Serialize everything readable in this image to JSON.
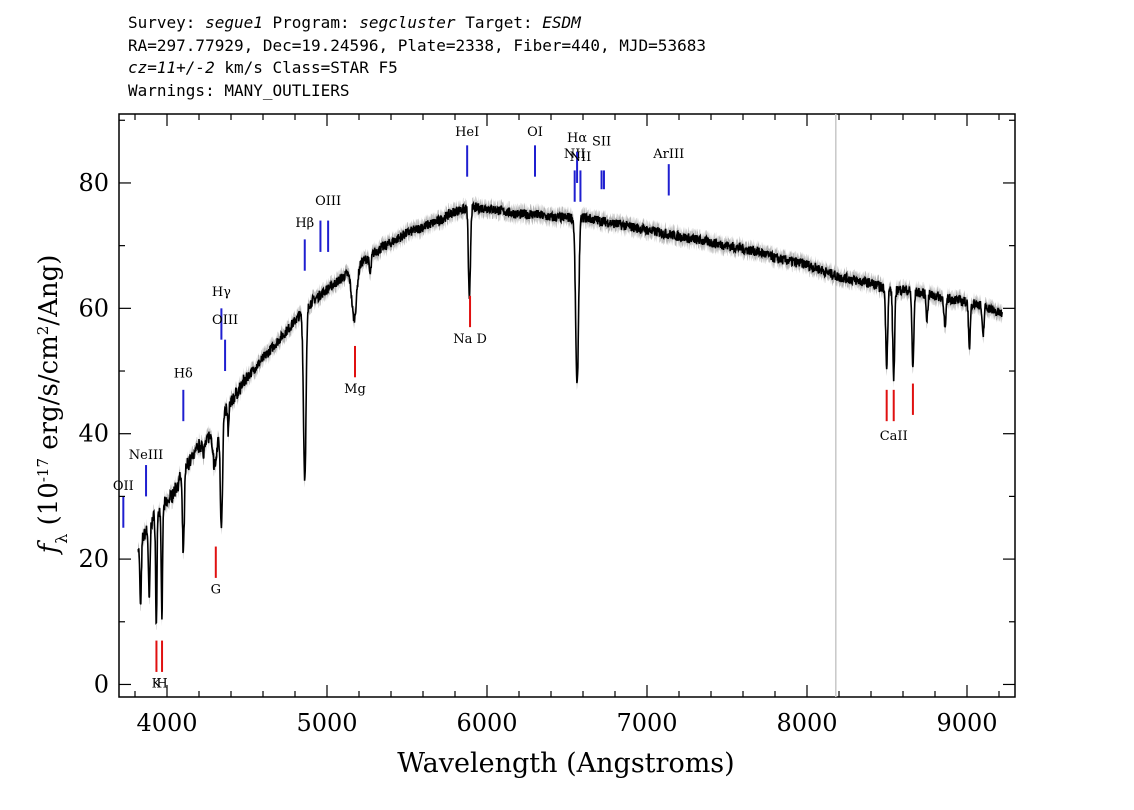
{
  "header": {
    "survey_label": "Survey:",
    "survey": "segue1",
    "program_label": "Program:",
    "program": "segcluster",
    "target_label": "Target:",
    "target": "ESDM",
    "line2": "RA=297.77929, Dec=19.24596, Plate=2338, Fiber=440, MJD=53683",
    "cz": "cz=11+/-2",
    "line3_rest": "km/s Class=STAR F5",
    "warnings": "Warnings: MANY_OUTLIERS"
  },
  "chart_data": {
    "type": "line",
    "xlabel": "Wavelength (Angstroms)",
    "ylabel_parts": [
      "f",
      "λ",
      " (10",
      "-17",
      " erg/s/cm",
      "2",
      "/Ang)"
    ],
    "xlim": [
      3700,
      9300
    ],
    "ylim": [
      -2,
      91
    ],
    "xticks": [
      4000,
      5000,
      6000,
      7000,
      8000,
      9000
    ],
    "yticks": [
      0,
      20,
      40,
      60,
      80
    ],
    "sky_line_x": 8180,
    "continuum": [
      [
        3820,
        22
      ],
      [
        3900,
        26
      ],
      [
        4000,
        29
      ],
      [
        4050,
        31
      ],
      [
        4100,
        34
      ],
      [
        4200,
        38
      ],
      [
        4300,
        41
      ],
      [
        4400,
        45
      ],
      [
        4500,
        49
      ],
      [
        4600,
        52
      ],
      [
        4700,
        55
      ],
      [
        4800,
        58
      ],
      [
        4900,
        61
      ],
      [
        5000,
        63
      ],
      [
        5100,
        65
      ],
      [
        5200,
        67
      ],
      [
        5300,
        69
      ],
      [
        5400,
        70.5
      ],
      [
        5500,
        72
      ],
      [
        5600,
        73
      ],
      [
        5700,
        74
      ],
      [
        5800,
        75.5
      ],
      [
        5900,
        76
      ],
      [
        6000,
        76
      ],
      [
        6100,
        75.5
      ],
      [
        6200,
        75
      ],
      [
        6300,
        75
      ],
      [
        6400,
        74.5
      ],
      [
        6500,
        74.5
      ],
      [
        6600,
        74.5
      ],
      [
        6700,
        74
      ],
      [
        6800,
        73.5
      ],
      [
        6900,
        73
      ],
      [
        7000,
        72.5
      ],
      [
        7100,
        72
      ],
      [
        7200,
        71.5
      ],
      [
        7300,
        71
      ],
      [
        7400,
        70.5
      ],
      [
        7500,
        70
      ],
      [
        7600,
        69.5
      ],
      [
        7700,
        69
      ],
      [
        7800,
        68
      ],
      [
        7900,
        67.5
      ],
      [
        8000,
        67
      ],
      [
        8100,
        66
      ],
      [
        8200,
        65
      ],
      [
        8300,
        64.5
      ],
      [
        8400,
        64
      ],
      [
        8500,
        63
      ],
      [
        8600,
        63
      ],
      [
        8700,
        62.5
      ],
      [
        8800,
        62
      ],
      [
        8900,
        61.5
      ],
      [
        9000,
        61
      ],
      [
        9100,
        60.5
      ],
      [
        9220,
        59
      ]
    ],
    "absorption_features": [
      [
        3835,
        10,
        5
      ],
      [
        3889,
        12,
        5
      ],
      [
        3933,
        18,
        4
      ],
      [
        3968,
        18,
        4
      ],
      [
        4102,
        13,
        6
      ],
      [
        4227,
        3,
        4
      ],
      [
        4300,
        6,
        15
      ],
      [
        4340,
        17,
        7
      ],
      [
        4383,
        4,
        4
      ],
      [
        4861,
        27,
        8
      ],
      [
        5170,
        8,
        15
      ],
      [
        5270,
        3,
        6
      ],
      [
        5890,
        15,
        6
      ],
      [
        6563,
        27,
        9
      ],
      [
        8498,
        12,
        6
      ],
      [
        8542,
        14,
        6
      ],
      [
        8662,
        12,
        6
      ],
      [
        8750,
        4,
        5
      ],
      [
        8863,
        5,
        6
      ],
      [
        9015,
        8,
        5
      ],
      [
        9100,
        5,
        6
      ]
    ],
    "emission_markers": [
      {
        "label": "OII",
        "x": 3727,
        "y_bottom": 25,
        "y_top": 30,
        "label_y": 31
      },
      {
        "label": "NeIII",
        "x": 3869,
        "y_bottom": 30,
        "y_top": 35,
        "label_y": 36
      },
      {
        "label": "Hδ",
        "x": 4102,
        "y_bottom": 42,
        "y_top": 47,
        "label_y": 49
      },
      {
        "label": "Hγ",
        "x": 4340,
        "y_bottom": 55,
        "y_top": 60,
        "label_y": 62
      },
      {
        "label": "OIII",
        "x": 4363,
        "y_bottom": 50,
        "y_top": 55,
        "label_y": 57.5
      },
      {
        "label": "Hβ",
        "x": 4861,
        "y_bottom": 66,
        "y_top": 71,
        "label_y": 73
      },
      {
        "label": "",
        "x": 4959,
        "y_bottom": 69,
        "y_top": 74,
        "label_y": 0
      },
      {
        "label": "OIII",
        "x": 5007,
        "y_bottom": 69,
        "y_top": 74,
        "label_y": 76.5
      },
      {
        "label": "HeI",
        "x": 5876,
        "y_bottom": 81,
        "y_top": 86,
        "label_y": 87.5
      },
      {
        "label": "OI",
        "x": 6300,
        "y_bottom": 81,
        "y_top": 86,
        "label_y": 87.5
      },
      {
        "label": "NII",
        "x": 6548,
        "y_bottom": 77,
        "y_top": 82,
        "label_y": 84
      },
      {
        "label": "Hα",
        "x": 6563,
        "y_bottom": 80,
        "y_top": 85,
        "label_y": 86.5
      },
      {
        "label": "NII",
        "x": 6584,
        "y_bottom": 77,
        "y_top": 82,
        "label_y": 83.5
      },
      {
        "label": "SII",
        "x": 6716,
        "y_bottom": 79,
        "y_top": 82,
        "label_y": 86
      },
      {
        "label": "",
        "x": 6731,
        "y_bottom": 79,
        "y_top": 82,
        "label_y": 0
      },
      {
        "label": "ArIII",
        "x": 7136,
        "y_bottom": 78,
        "y_top": 83,
        "label_y": 84
      }
    ],
    "absorption_markers": [
      {
        "label": "K",
        "x": 3934,
        "y_bottom": 2,
        "y_top": 7,
        "label_y": -0.5
      },
      {
        "label": "H",
        "x": 3969,
        "y_bottom": 2,
        "y_top": 7,
        "label_y": -0.5
      },
      {
        "label": "G",
        "x": 4305,
        "y_bottom": 17,
        "y_top": 22,
        "label_y": 14.5
      },
      {
        "label": "Mg",
        "x": 5175,
        "y_bottom": 49,
        "y_top": 54,
        "label_y": 46.5
      },
      {
        "label": "Na D",
        "x": 5894,
        "y_bottom": 57,
        "y_top": 62,
        "label_y": 54.5
      },
      {
        "label": "",
        "x": 8498,
        "y_bottom": 42,
        "y_top": 47,
        "label_y": 0
      },
      {
        "label": "CaII",
        "x": 8542,
        "y_bottom": 42,
        "y_top": 47,
        "label_y": 39
      },
      {
        "label": "",
        "x": 8662,
        "y_bottom": 43,
        "y_top": 48,
        "label_y": 0
      }
    ],
    "colors": {
      "flux": "#000000",
      "error_band": "#b4b4b4",
      "emission": "#1f1fd0",
      "absorption": "#e01010",
      "sky_line": "#c8c8c8"
    }
  }
}
